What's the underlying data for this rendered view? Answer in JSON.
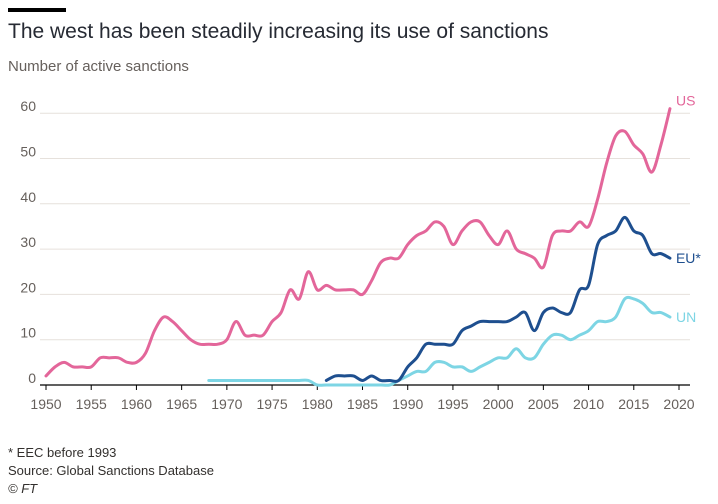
{
  "header": {
    "title": "The west has been steadily increasing its use of sanctions",
    "subtitle": "Number of active sanctions"
  },
  "footer": {
    "note": "* EEC before 1993",
    "source": "Source: Global Sanctions Database",
    "credit": "© FT"
  },
  "chart_data": {
    "type": "line",
    "title": "The west has been steadily increasing its use of sanctions",
    "subtitle": "Number of active sanctions",
    "xlabel": "",
    "ylabel": "",
    "xlim": [
      1950,
      2020
    ],
    "ylim": [
      0,
      62
    ],
    "x_ticks": [
      1950,
      1955,
      1960,
      1965,
      1970,
      1975,
      1980,
      1985,
      1990,
      1995,
      2000,
      2005,
      2010,
      2015,
      2020
    ],
    "y_ticks": [
      0,
      10,
      20,
      30,
      40,
      50,
      60
    ],
    "grid": "horizontal",
    "legend": "direct labels at line ends",
    "series": [
      {
        "name": "US",
        "color": "#e3669a",
        "x": [
          1950,
          1951,
          1952,
          1953,
          1954,
          1955,
          1956,
          1957,
          1958,
          1959,
          1960,
          1961,
          1962,
          1963,
          1964,
          1965,
          1966,
          1967,
          1968,
          1969,
          1970,
          1971,
          1972,
          1973,
          1974,
          1975,
          1976,
          1977,
          1978,
          1979,
          1980,
          1981,
          1982,
          1983,
          1984,
          1985,
          1986,
          1987,
          1988,
          1989,
          1990,
          1991,
          1992,
          1993,
          1994,
          1995,
          1996,
          1997,
          1998,
          1999,
          2000,
          2001,
          2002,
          2003,
          2004,
          2005,
          2006,
          2007,
          2008,
          2009,
          2010,
          2011,
          2012,
          2013,
          2014,
          2015,
          2016,
          2017,
          2018,
          2019
        ],
        "values": [
          2,
          4,
          5,
          4,
          4,
          4,
          6,
          6,
          6,
          5,
          5,
          7,
          12,
          15,
          14,
          12,
          10,
          9,
          9,
          9,
          10,
          14,
          11,
          11,
          11,
          14,
          16,
          21,
          19,
          25,
          21,
          22,
          21,
          21,
          21,
          20,
          23,
          27,
          28,
          28,
          31,
          33,
          34,
          36,
          35,
          31,
          34,
          36,
          36,
          33,
          31,
          34,
          30,
          29,
          28,
          26,
          33,
          34,
          34,
          36,
          35,
          41,
          49,
          55,
          56,
          53,
          51,
          47,
          53,
          61
        ]
      },
      {
        "name": "EU*",
        "color": "#1e4f8f",
        "x": [
          1981,
          1982,
          1983,
          1984,
          1985,
          1986,
          1987,
          1988,
          1989,
          1990,
          1991,
          1992,
          1993,
          1994,
          1995,
          1996,
          1997,
          1998,
          1999,
          2000,
          2001,
          2002,
          2003,
          2004,
          2005,
          2006,
          2007,
          2008,
          2009,
          2010,
          2011,
          2012,
          2013,
          2014,
          2015,
          2016,
          2017,
          2018,
          2019
        ],
        "values": [
          1,
          2,
          2,
          2,
          1,
          2,
          1,
          1,
          1,
          4,
          6,
          9,
          9,
          9,
          9,
          12,
          13,
          14,
          14,
          14,
          14,
          15,
          16,
          12,
          16,
          17,
          16,
          16,
          21,
          22,
          31,
          33,
          34,
          37,
          34,
          33,
          29,
          29,
          28
        ]
      },
      {
        "name": "UN",
        "color": "#7dd5e4",
        "x": [
          1968,
          1969,
          1970,
          1971,
          1972,
          1973,
          1974,
          1975,
          1976,
          1977,
          1978,
          1979,
          1980,
          1981,
          1982,
          1983,
          1984,
          1985,
          1986,
          1987,
          1988,
          1989,
          1990,
          1991,
          1992,
          1993,
          1994,
          1995,
          1996,
          1997,
          1998,
          1999,
          2000,
          2001,
          2002,
          2003,
          2004,
          2005,
          2006,
          2007,
          2008,
          2009,
          2010,
          2011,
          2012,
          2013,
          2014,
          2015,
          2016,
          2017,
          2018,
          2019
        ],
        "values": [
          1,
          1,
          1,
          1,
          1,
          1,
          1,
          1,
          1,
          1,
          1,
          1,
          0,
          0,
          0,
          0,
          0,
          0,
          0,
          0,
          0,
          1,
          2,
          3,
          3,
          5,
          5,
          4,
          4,
          3,
          4,
          5,
          6,
          6,
          8,
          6,
          6,
          9,
          11,
          11,
          10,
          11,
          12,
          14,
          14,
          15,
          19,
          19,
          18,
          16,
          16,
          15
        ]
      }
    ]
  }
}
